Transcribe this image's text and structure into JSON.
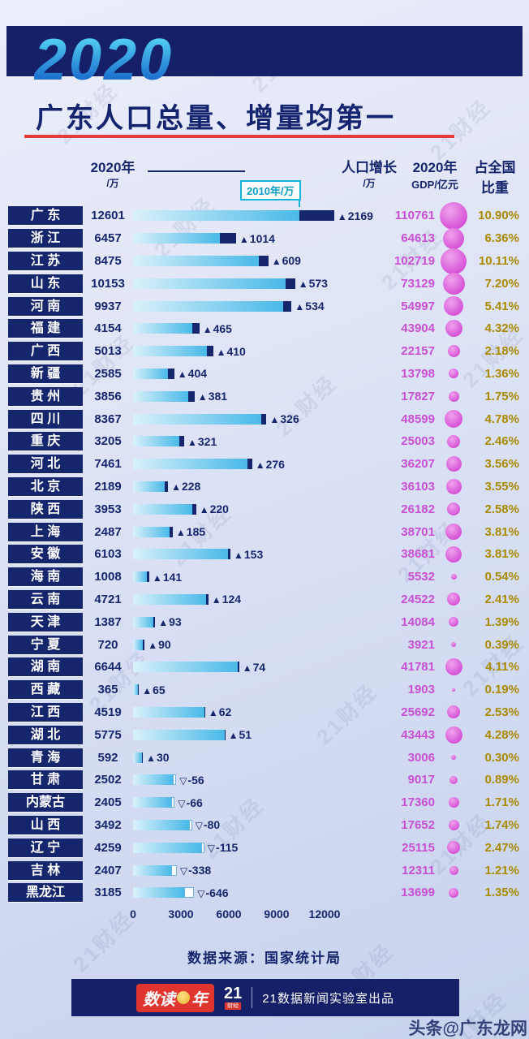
{
  "header": {
    "year": "2020",
    "title": "广东人口总量、增量均第一"
  },
  "columns": {
    "pop2020_line1": "2020年",
    "pop2020_line2": "/万",
    "pop2010_label": "2010年/万",
    "growth_line1": "人口增长",
    "growth_line2": "/万",
    "gdp_line1": "2020年",
    "gdp_line2": "GDP/亿元",
    "share_line1": "占全国",
    "share_line2": "比重"
  },
  "chart_data": {
    "type": "bar",
    "title": "2020 广东人口总量、增量均第一",
    "unit": "万",
    "axis_ticks": [
      0,
      3000,
      6000,
      9000,
      12000
    ],
    "xlim": [
      0,
      12000
    ],
    "rows": [
      {
        "province": "广 东",
        "pop2020": 12601,
        "growth": 2169,
        "gdp2020": 110761,
        "share": "10.90%"
      },
      {
        "province": "浙 江",
        "pop2020": 6457,
        "growth": 1014,
        "gdp2020": 64613,
        "share": "6.36%"
      },
      {
        "province": "江 苏",
        "pop2020": 8475,
        "growth": 609,
        "gdp2020": 102719,
        "share": "10.11%"
      },
      {
        "province": "山 东",
        "pop2020": 10153,
        "growth": 573,
        "gdp2020": 73129,
        "share": "7.20%"
      },
      {
        "province": "河 南",
        "pop2020": 9937,
        "growth": 534,
        "gdp2020": 54997,
        "share": "5.41%"
      },
      {
        "province": "福 建",
        "pop2020": 4154,
        "growth": 465,
        "gdp2020": 43904,
        "share": "4.32%"
      },
      {
        "province": "广 西",
        "pop2020": 5013,
        "growth": 410,
        "gdp2020": 22157,
        "share": "2.18%"
      },
      {
        "province": "新 疆",
        "pop2020": 2585,
        "growth": 404,
        "gdp2020": 13798,
        "share": "1.36%"
      },
      {
        "province": "贵 州",
        "pop2020": 3856,
        "growth": 381,
        "gdp2020": 17827,
        "share": "1.75%"
      },
      {
        "province": "四 川",
        "pop2020": 8367,
        "growth": 326,
        "gdp2020": 48599,
        "share": "4.78%"
      },
      {
        "province": "重 庆",
        "pop2020": 3205,
        "growth": 321,
        "gdp2020": 25003,
        "share": "2.46%"
      },
      {
        "province": "河 北",
        "pop2020": 7461,
        "growth": 276,
        "gdp2020": 36207,
        "share": "3.56%"
      },
      {
        "province": "北 京",
        "pop2020": 2189,
        "growth": 228,
        "gdp2020": 36103,
        "share": "3.55%"
      },
      {
        "province": "陕 西",
        "pop2020": 3953,
        "growth": 220,
        "gdp2020": 26182,
        "share": "2.58%"
      },
      {
        "province": "上 海",
        "pop2020": 2487,
        "growth": 185,
        "gdp2020": 38701,
        "share": "3.81%"
      },
      {
        "province": "安 徽",
        "pop2020": 6103,
        "growth": 153,
        "gdp2020": 38681,
        "share": "3.81%"
      },
      {
        "province": "海 南",
        "pop2020": 1008,
        "growth": 141,
        "gdp2020": 5532,
        "share": "0.54%"
      },
      {
        "province": "云 南",
        "pop2020": 4721,
        "growth": 124,
        "gdp2020": 24522,
        "share": "2.41%"
      },
      {
        "province": "天 津",
        "pop2020": 1387,
        "growth": 93,
        "gdp2020": 14084,
        "share": "1.39%"
      },
      {
        "province": "宁 夏",
        "pop2020": 720,
        "growth": 90,
        "gdp2020": 3921,
        "share": "0.39%"
      },
      {
        "province": "湖 南",
        "pop2020": 6644,
        "growth": 74,
        "gdp2020": 41781,
        "share": "4.11%"
      },
      {
        "province": "西 藏",
        "pop2020": 365,
        "growth": 65,
        "gdp2020": 1903,
        "share": "0.19%"
      },
      {
        "province": "江 西",
        "pop2020": 4519,
        "growth": 62,
        "gdp2020": 25692,
        "share": "2.53%"
      },
      {
        "province": "湖 北",
        "pop2020": 5775,
        "growth": 51,
        "gdp2020": 43443,
        "share": "4.28%"
      },
      {
        "province": "青 海",
        "pop2020": 592,
        "growth": 30,
        "gdp2020": 3006,
        "share": "0.30%"
      },
      {
        "province": "甘 肃",
        "pop2020": 2502,
        "growth": -56,
        "gdp2020": 9017,
        "share": "0.89%"
      },
      {
        "province": "内蒙古",
        "pop2020": 2405,
        "growth": -66,
        "gdp2020": 17360,
        "share": "1.71%"
      },
      {
        "province": "山 西",
        "pop2020": 3492,
        "growth": -80,
        "gdp2020": 17652,
        "share": "1.74%"
      },
      {
        "province": "辽 宁",
        "pop2020": 4259,
        "growth": -115,
        "gdp2020": 25115,
        "share": "2.47%"
      },
      {
        "province": "吉 林",
        "pop2020": 2407,
        "growth": -338,
        "gdp2020": 12311,
        "share": "1.21%"
      },
      {
        "province": "黑龙江",
        "pop2020": 3185,
        "growth": -646,
        "gdp2020": 13699,
        "share": "1.35%"
      }
    ]
  },
  "footer": {
    "source": "数据来源：国家统计局",
    "logo_shudu": "数读",
    "logo_year": "年",
    "logo_21": "21",
    "logo_21_sub": "财经",
    "credit": "21数据新闻实验室出品"
  },
  "watermark": {
    "text": "21财经",
    "corner": "头条@广东龙网"
  }
}
